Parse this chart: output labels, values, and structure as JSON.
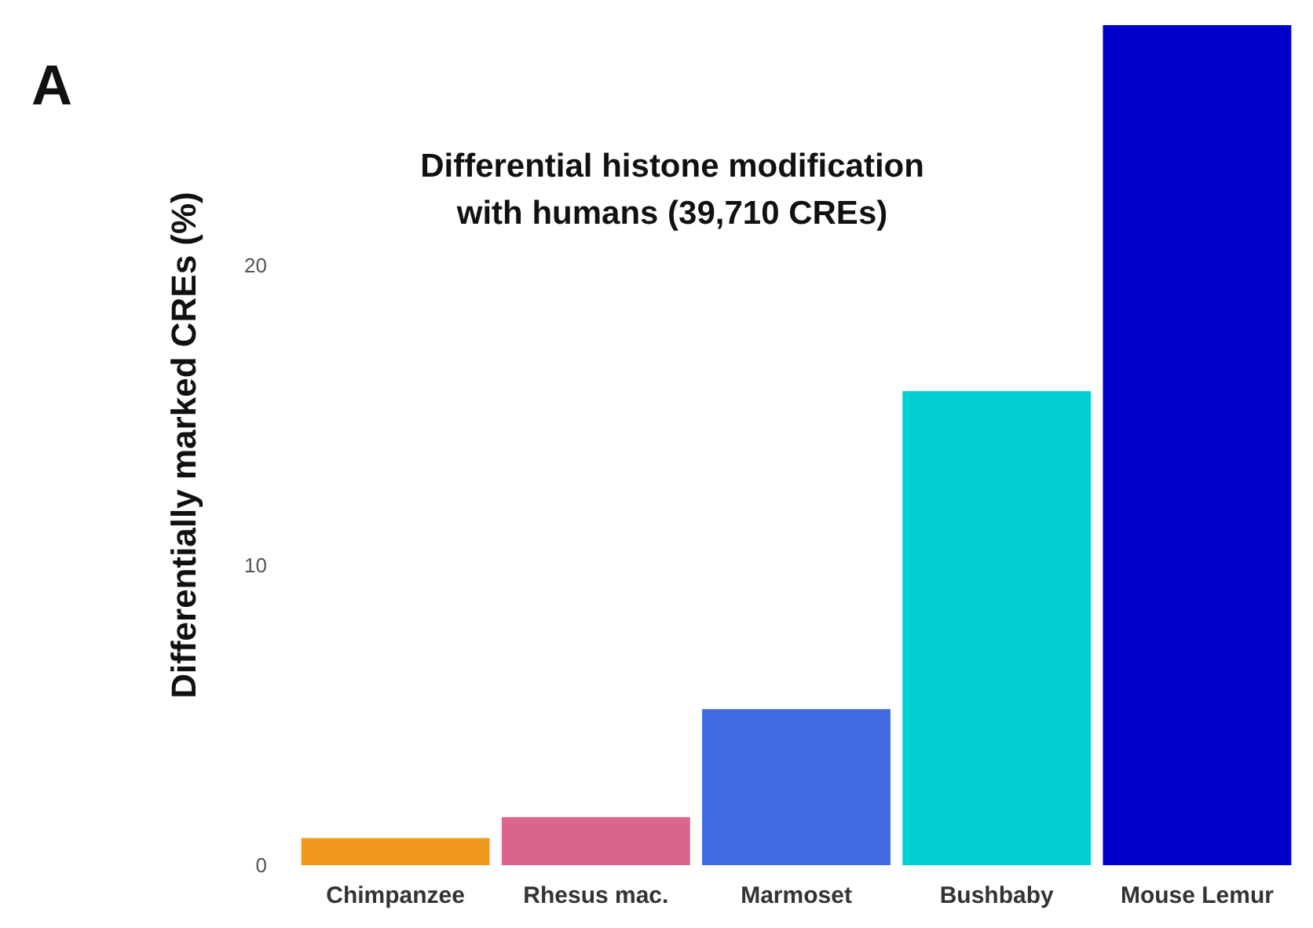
{
  "chart_data": {
    "type": "bar",
    "title": "Differential histone modification\nwith humans (39,710 CREs)",
    "ylabel": "Differentially marked CREs (%)",
    "annotations": [
      "A"
    ],
    "categories": [
      "Chimpanzee",
      "Rhesus mac.",
      "Marmoset",
      "Bushbaby",
      "Mouse Lemur"
    ],
    "values": [
      0.9,
      1.6,
      5.2,
      15.8,
      28
    ],
    "colors": [
      "#f0981e",
      "#d9648c",
      "#4169e1",
      "#00ced1",
      "#0000cd"
    ],
    "ylim": [
      0,
      28
    ],
    "yticks": [
      0,
      10,
      20
    ],
    "grid": false
  }
}
